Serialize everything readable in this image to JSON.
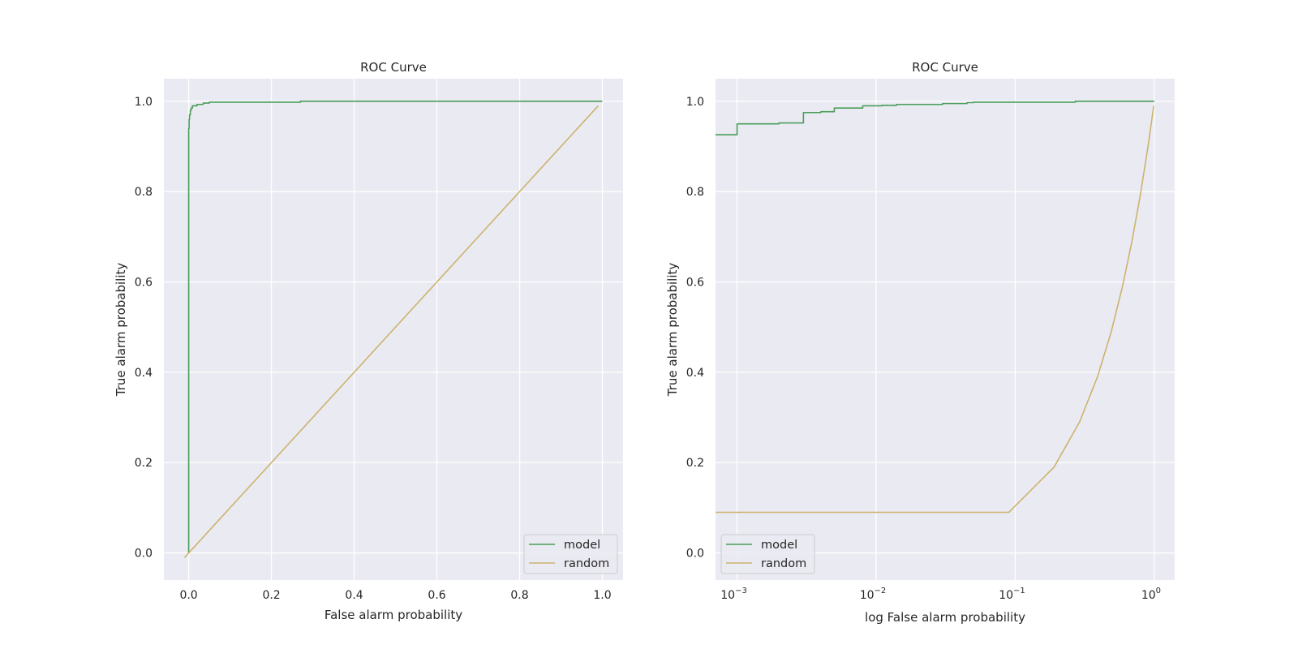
{
  "colors": {
    "model": "#4a9d5b",
    "random": "#ccb36e",
    "plot_bg": "#eaeaf2",
    "grid": "#ffffff",
    "text": "#262626"
  },
  "chart_data": [
    {
      "type": "line",
      "title": "ROC Curve",
      "xlabel": "False alarm probability",
      "ylabel": "True alarm probability",
      "xscale": "linear",
      "xlim": [
        -0.06,
        1.05
      ],
      "ylim": [
        -0.06,
        1.05
      ],
      "xticks": [
        0.0,
        0.2,
        0.4,
        0.6,
        0.8,
        1.0
      ],
      "xtick_labels": [
        "0.0",
        "0.2",
        "0.4",
        "0.6",
        "0.8",
        "1.0"
      ],
      "yticks": [
        0.0,
        0.2,
        0.4,
        0.6,
        0.8,
        1.0
      ],
      "ytick_labels": [
        "0.0",
        "0.2",
        "0.4",
        "0.6",
        "0.8",
        "1.0"
      ],
      "grid": true,
      "legend_position": "lower-right",
      "series": [
        {
          "name": "model",
          "color_key": "model",
          "points": [
            [
              0.0,
              0.0
            ],
            [
              0.0,
              0.94
            ],
            [
              0.001,
              0.94
            ],
            [
              0.001,
              0.96
            ],
            [
              0.002,
              0.96
            ],
            [
              0.002,
              0.97
            ],
            [
              0.004,
              0.97
            ],
            [
              0.004,
              0.98
            ],
            [
              0.006,
              0.98
            ],
            [
              0.006,
              0.985
            ],
            [
              0.009,
              0.985
            ],
            [
              0.009,
              0.99
            ],
            [
              0.02,
              0.99
            ],
            [
              0.02,
              0.993
            ],
            [
              0.035,
              0.993
            ],
            [
              0.035,
              0.996
            ],
            [
              0.05,
              0.996
            ],
            [
              0.05,
              0.998
            ],
            [
              0.27,
              0.998
            ],
            [
              0.27,
              1.0
            ],
            [
              1.0,
              1.0
            ]
          ]
        },
        {
          "name": "random",
          "color_key": "random",
          "points": [
            [
              -0.01,
              -0.01
            ],
            [
              0.99,
              0.99
            ]
          ]
        }
      ]
    },
    {
      "type": "line",
      "title": "ROC Curve",
      "xlabel": "log False alarm probability",
      "ylabel": "True alarm probability",
      "xscale": "log",
      "xlim": [
        0.0007,
        1.4
      ],
      "ylim": [
        -0.06,
        1.05
      ],
      "xticks": [
        0.001,
        0.01,
        0.1,
        1
      ],
      "xtick_labels": [
        {
          "base": "10",
          "exp": "−3"
        },
        {
          "base": "10",
          "exp": "−2"
        },
        {
          "base": "10",
          "exp": "−1"
        },
        {
          "base": "10",
          "exp": "0"
        }
      ],
      "yticks": [
        0.0,
        0.2,
        0.4,
        0.6,
        0.8,
        1.0
      ],
      "ytick_labels": [
        "0.0",
        "0.2",
        "0.4",
        "0.6",
        "0.8",
        "1.0"
      ],
      "grid": true,
      "legend_position": "lower-left",
      "series": [
        {
          "name": "model",
          "color_key": "model",
          "points": [
            [
              0.0007,
              0.926
            ],
            [
              0.001,
              0.926
            ],
            [
              0.001,
              0.95
            ],
            [
              0.002,
              0.95
            ],
            [
              0.002,
              0.952
            ],
            [
              0.003,
              0.952
            ],
            [
              0.003,
              0.975
            ],
            [
              0.004,
              0.975
            ],
            [
              0.004,
              0.977
            ],
            [
              0.005,
              0.977
            ],
            [
              0.005,
              0.985
            ],
            [
              0.008,
              0.985
            ],
            [
              0.008,
              0.99
            ],
            [
              0.011,
              0.99
            ],
            [
              0.011,
              0.991
            ],
            [
              0.014,
              0.991
            ],
            [
              0.014,
              0.993
            ],
            [
              0.03,
              0.993
            ],
            [
              0.03,
              0.995
            ],
            [
              0.045,
              0.995
            ],
            [
              0.045,
              0.997
            ],
            [
              0.05,
              0.997
            ],
            [
              0.05,
              0.998
            ],
            [
              0.27,
              0.998
            ],
            [
              0.27,
              1.0
            ],
            [
              1.0,
              1.0
            ]
          ]
        },
        {
          "name": "random",
          "color_key": "random",
          "points": [
            [
              0.0007,
              0.09
            ],
            [
              0.09,
              0.09
            ],
            [
              0.19,
              0.19
            ],
            [
              0.29,
              0.29
            ],
            [
              0.39,
              0.39
            ],
            [
              0.49,
              0.49
            ],
            [
              0.59,
              0.59
            ],
            [
              0.69,
              0.69
            ],
            [
              0.79,
              0.79
            ],
            [
              0.89,
              0.89
            ],
            [
              0.99,
              0.99
            ]
          ]
        }
      ]
    }
  ]
}
